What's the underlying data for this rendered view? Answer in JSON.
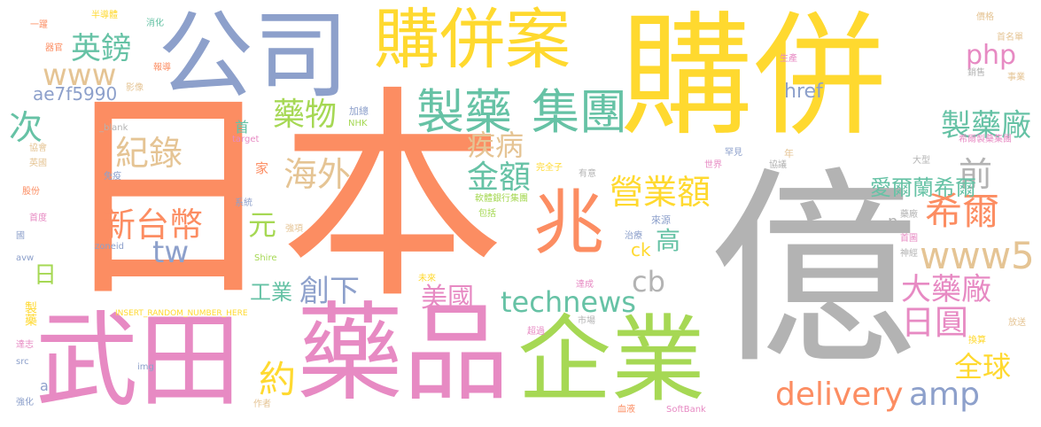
{
  "palette": {
    "orange": "#fc8d62",
    "gray": "#b3b3b3",
    "yellow": "#ffd92f",
    "pink": "#e78ac3",
    "blue": "#8da0cb",
    "green": "#a6d854",
    "teal": "#66c2a5",
    "tan": "#e5c494"
  },
  "words": [
    "日本",
    "購併",
    "億",
    "公司",
    "購併案",
    "武田",
    "藥品",
    "企業",
    "兆",
    "製藥",
    "集團",
    "英鎊",
    "www",
    "次",
    "紀錄",
    "藥物",
    "海外",
    "疾病",
    "金額",
    "前",
    "新台幣",
    "元",
    "tw",
    "日",
    "工業",
    "創下",
    "美國",
    "technews",
    "約",
    "delivery",
    "amp",
    "全球",
    "日圓",
    "大藥廠",
    "www5",
    "cb",
    "高",
    "ck",
    "營業額",
    "希爾",
    "愛爾蘭希爾",
    "製藥廠",
    "php",
    "href",
    "ae7f5990",
    "首",
    "家",
    "製藥",
    "n",
    "INSERT_RANDOM_NUMBER_HERE",
    "zoneid",
    "_blank",
    "target",
    "NHK",
    "加總",
    "免疫",
    "系統",
    "強項",
    "Shire",
    "未來",
    "達成",
    "超過",
    "市場",
    "血液",
    "作者",
    "SoftBank",
    "換算",
    "放送",
    "首圖",
    "神經",
    "藥廠",
    "來源",
    "治療",
    "包括",
    "軟體銀行集團",
    "完全子",
    "有意",
    "世界",
    "罕見",
    "協議",
    "年",
    "大型",
    "希爾製藥集團",
    "銷售",
    "事業",
    "價格",
    "首名單",
    "生產",
    "半導體",
    "消化",
    "一躍",
    "器官",
    "報導",
    "影像",
    "協會",
    "英國",
    "股份",
    "首度",
    "國",
    "avw",
    "達志",
    "src",
    "img",
    "a",
    "強化"
  ]
}
